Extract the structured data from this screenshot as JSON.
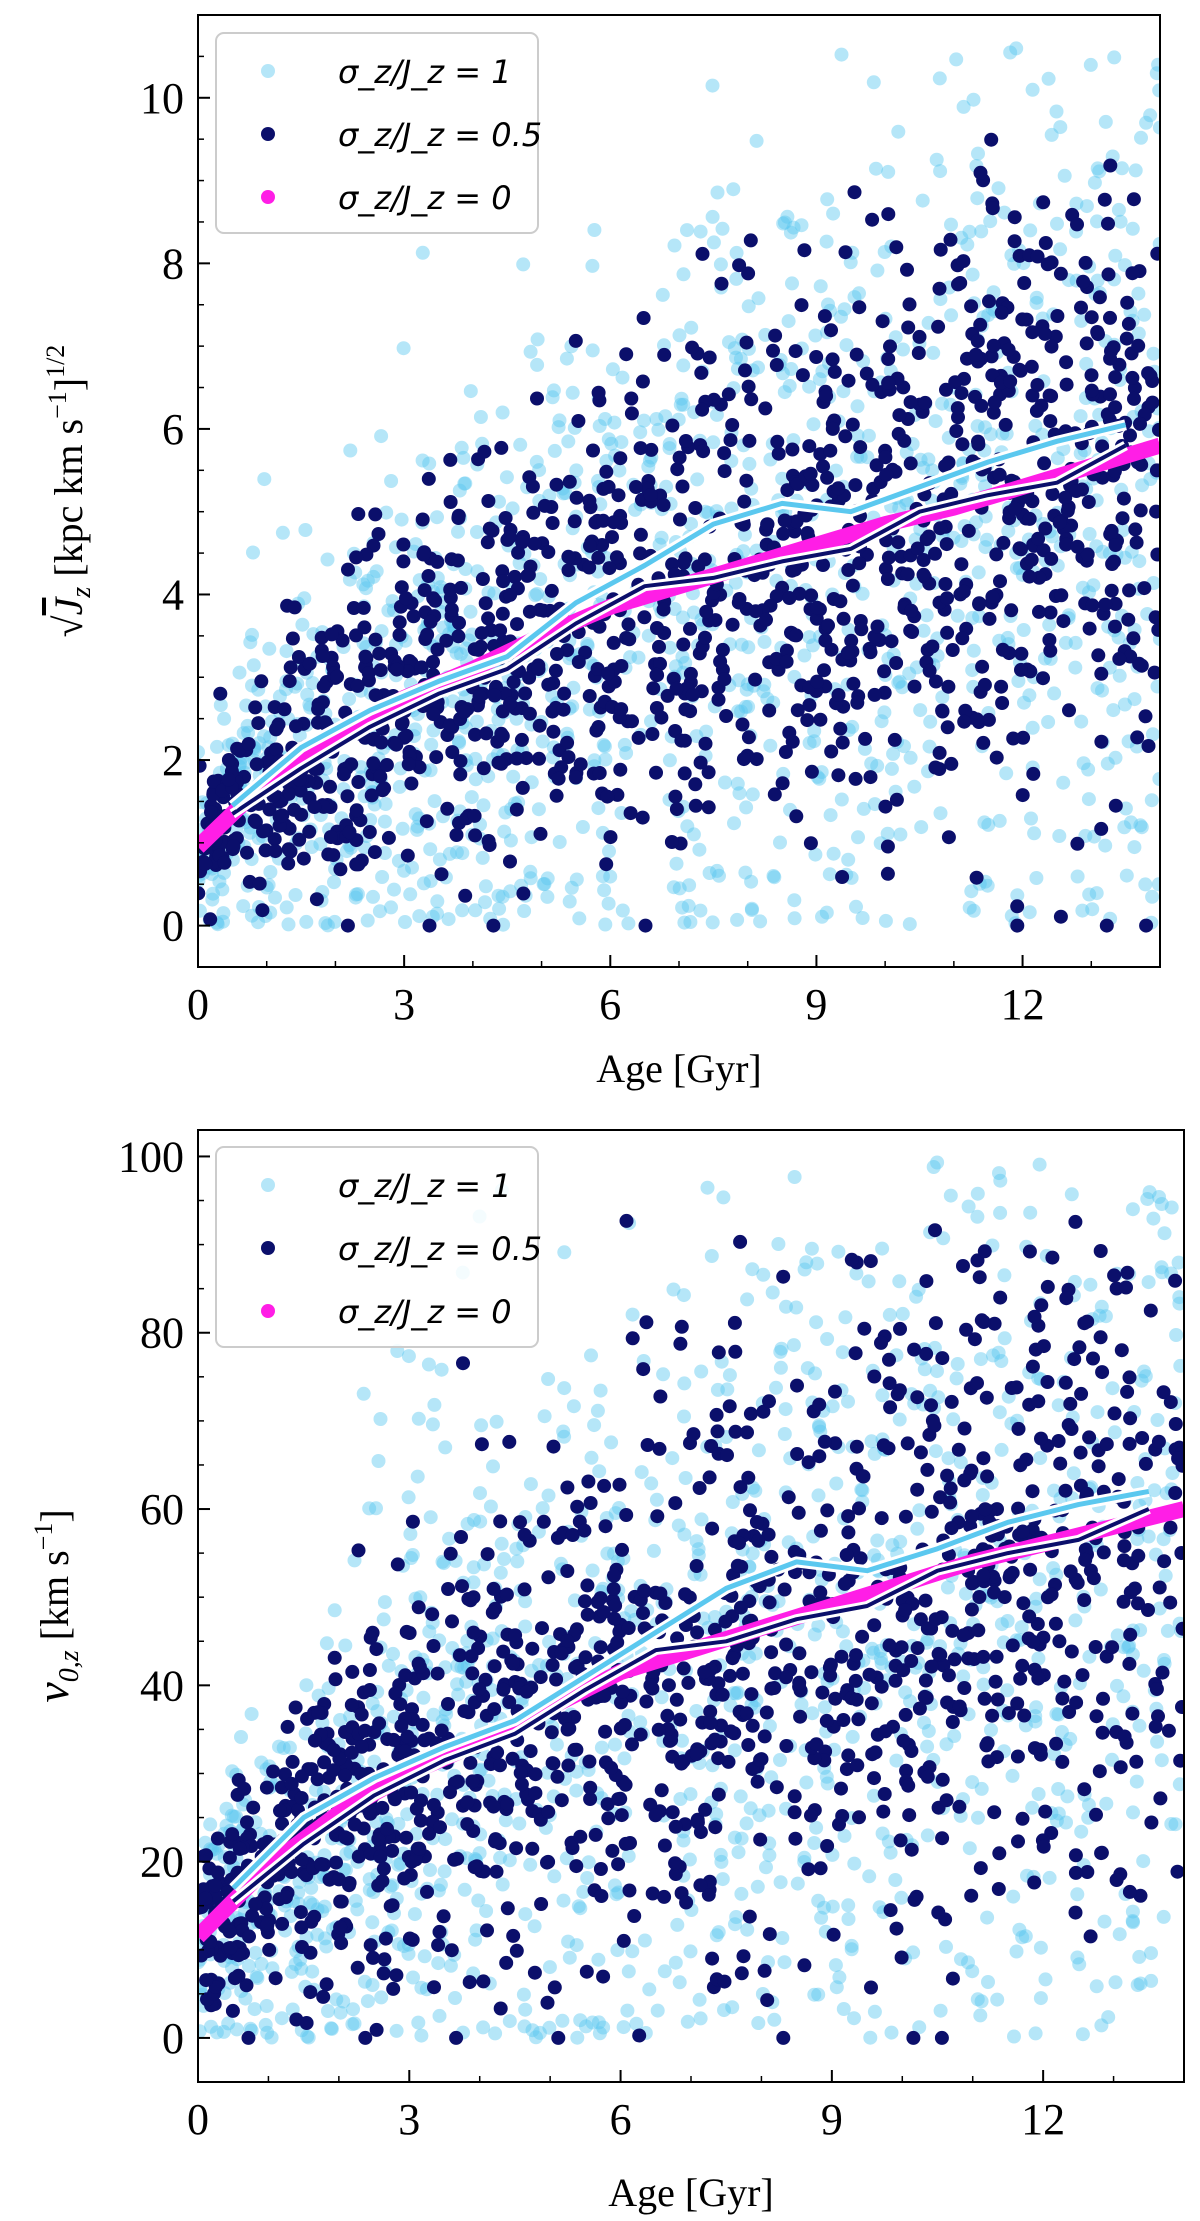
{
  "colors": {
    "sigma1": "#5bc8ef",
    "sigma05": "#0b0f6b",
    "sigma0": "#ff1ee6",
    "curve_outline": "#ffffff"
  },
  "chart_data": [
    {
      "type": "scatter",
      "panel": "top",
      "xlabel": "Age [Gyr]",
      "ylabel": "√J_z [kpc km s^-1]^1/2",
      "xlim": [
        0,
        14
      ],
      "ylim": [
        -0.5,
        11
      ],
      "xticks": [
        0,
        3,
        6,
        9,
        12
      ],
      "yticks": [
        0,
        2,
        4,
        6,
        8,
        10
      ],
      "legend_position": "top-left",
      "legend": [
        "σ_z/J_z = 1",
        "σ_z/J_z = 0.5",
        "σ_z/J_z = 0"
      ],
      "series": [
        {
          "name": "σ_z/J_z = 0",
          "kind": "mean_curve",
          "x": [
            0,
            1,
            2,
            3,
            4,
            5,
            6,
            7,
            8,
            9,
            10,
            11,
            12,
            13,
            14
          ],
          "y": [
            0.95,
            1.75,
            2.3,
            2.75,
            3.1,
            3.5,
            3.85,
            4.1,
            4.35,
            4.6,
            4.85,
            5.05,
            5.3,
            5.55,
            5.8
          ]
        },
        {
          "name": "σ_z/J_z = 0.5",
          "kind": "binned_median",
          "x": [
            0.5,
            1.5,
            2.5,
            3.5,
            4.5,
            5.5,
            6.5,
            7.5,
            8.5,
            9.5,
            10.5,
            11.5,
            12.5,
            13.5
          ],
          "y": [
            1.35,
            1.9,
            2.4,
            2.8,
            3.1,
            3.65,
            4.1,
            4.2,
            4.4,
            4.55,
            5.0,
            5.2,
            5.35,
            5.8
          ]
        },
        {
          "name": "σ_z/J_z = 1",
          "kind": "binned_median",
          "x": [
            0.5,
            1.5,
            2.5,
            3.5,
            4.5,
            5.5,
            6.5,
            7.5,
            8.5,
            9.5,
            10.5,
            11.5,
            12.5,
            13.5
          ],
          "y": [
            1.45,
            2.15,
            2.6,
            2.95,
            3.25,
            3.9,
            4.35,
            4.85,
            5.1,
            5.0,
            5.3,
            5.6,
            5.85,
            6.05
          ]
        }
      ],
      "scatter_model": {
        "points_per_series": 1300,
        "sigma05_scale": 0.38,
        "sigma1_scale": 0.6
      }
    },
    {
      "type": "scatter",
      "panel": "bottom",
      "xlabel": "Age [Gyr]",
      "ylabel": "v_0,z [km s^-1]",
      "xlim": [
        0,
        14
      ],
      "ylim": [
        -5,
        103
      ],
      "xticks": [
        0,
        3,
        6,
        9,
        12
      ],
      "yticks": [
        0,
        20,
        40,
        60,
        80,
        100
      ],
      "legend_position": "top-left",
      "legend": [
        "σ_z/J_z = 1",
        "σ_z/J_z = 0.5",
        "σ_z/J_z = 0"
      ],
      "series": [
        {
          "name": "σ_z/J_z = 0",
          "kind": "mean_curve",
          "x": [
            0,
            1,
            2,
            3,
            4,
            5,
            6,
            7,
            8,
            9,
            10,
            11,
            12,
            13,
            14
          ],
          "y": [
            11.5,
            19.5,
            25.5,
            30,
            33.5,
            37.5,
            41.5,
            44,
            46.5,
            49,
            51.5,
            54,
            56,
            58,
            60
          ]
        },
        {
          "name": "σ_z/J_z = 0.5",
          "kind": "binned_median",
          "x": [
            0.5,
            1.5,
            2.5,
            3.5,
            4.5,
            5.5,
            6.5,
            7.5,
            8.5,
            9.5,
            10.5,
            11.5,
            12.5,
            13.5
          ],
          "y": [
            15.5,
            22,
            27.5,
            31.5,
            34.5,
            39.5,
            44,
            45,
            47.5,
            49,
            53,
            55,
            56.5,
            60
          ]
        },
        {
          "name": "σ_z/J_z = 1",
          "kind": "binned_median",
          "x": [
            0.5,
            1.5,
            2.5,
            3.5,
            4.5,
            5.5,
            6.5,
            7.5,
            8.5,
            9.5,
            10.5,
            11.5,
            12.5,
            13.5
          ],
          "y": [
            17,
            25,
            29.5,
            33,
            36,
            41,
            46,
            51,
            54,
            53,
            55.5,
            58.5,
            60.5,
            62
          ]
        }
      ],
      "scatter_model": {
        "points_per_series": 1300,
        "sigma05_scale": 0.38,
        "sigma1_scale": 0.6
      }
    }
  ]
}
